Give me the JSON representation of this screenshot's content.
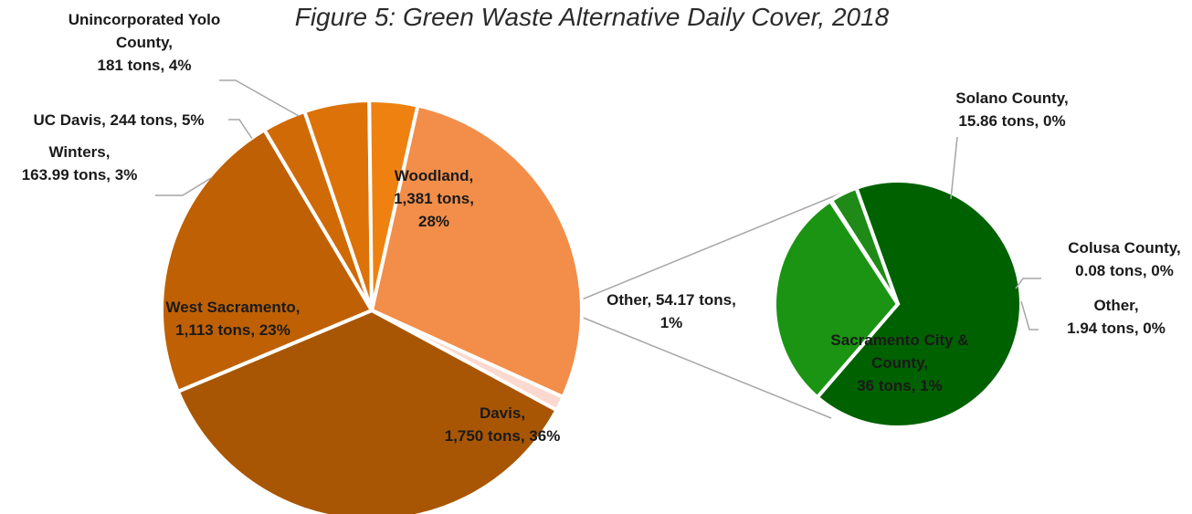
{
  "chart_data": {
    "type": "pie",
    "subtype": "pie-of-pie",
    "title": "Figure 5: Green Waste Alternative Daily Cover, 2018",
    "primary_pie": {
      "slices": [
        {
          "name": "Woodland",
          "value": 1381,
          "unit": "tons",
          "percent": 28,
          "color": "#f28e4a",
          "label_lines": [
            "Woodland,",
            "1,381 tons,",
            "28%"
          ]
        },
        {
          "name": "Other",
          "value": 54.17,
          "unit": "tons",
          "percent": 1,
          "color": "#fbd9cf",
          "label_lines": [
            "Other, 54.17 tons,",
            "1%"
          ]
        },
        {
          "name": "Davis",
          "value": 1750,
          "unit": "tons",
          "percent": 36,
          "color": "#a85604",
          "label_lines": [
            "Davis,",
            "1,750 tons, 36%"
          ]
        },
        {
          "name": "West Sacramento",
          "value": 1113,
          "unit": "tons",
          "percent": 23,
          "color": "#bf6004",
          "label_lines": [
            "West Sacramento,",
            "1,113 tons, 23%"
          ]
        },
        {
          "name": "Winters",
          "value": 163.99,
          "unit": "tons",
          "percent": 3,
          "color": "#d06a06",
          "label_lines": [
            "Winters,",
            "163.99 tons, 3%"
          ]
        },
        {
          "name": "UC Davis",
          "value": 244,
          "unit": "tons",
          "percent": 5,
          "color": "#dd7208",
          "label_lines": [
            "UC Davis, 244 tons, 5%"
          ]
        },
        {
          "name": "Unincorporated Yolo County",
          "value": 181,
          "unit": "tons",
          "percent": 4,
          "color": "#ee8110",
          "label_lines": [
            "Unincorporated Yolo",
            "County,",
            "181 tons, 4%"
          ]
        }
      ]
    },
    "secondary_pie": {
      "slices": [
        {
          "name": "Solano County",
          "value": 15.86,
          "unit": "tons",
          "percent": 0,
          "color": "#1a9412",
          "label_lines": [
            "Solano County,",
            "15.86 tons, 0%"
          ]
        },
        {
          "name": "Colusa County",
          "value": 0.08,
          "unit": "tons",
          "percent": 0,
          "color": "#2aa321",
          "label_lines": [
            "Colusa County,",
            "0.08 tons, 0%"
          ]
        },
        {
          "name": "Other",
          "value": 1.94,
          "unit": "tons",
          "percent": 0,
          "color": "#1f8a17",
          "label_lines": [
            "Other,",
            "1.94 tons, 0%"
          ]
        },
        {
          "name": "Sacramento City & County",
          "value": 36,
          "unit": "tons",
          "percent": 1,
          "color": "#006100",
          "label_lines": [
            "Sacramento City &",
            "County,",
            "36 tons, 1%"
          ]
        }
      ]
    },
    "legend": "none"
  }
}
